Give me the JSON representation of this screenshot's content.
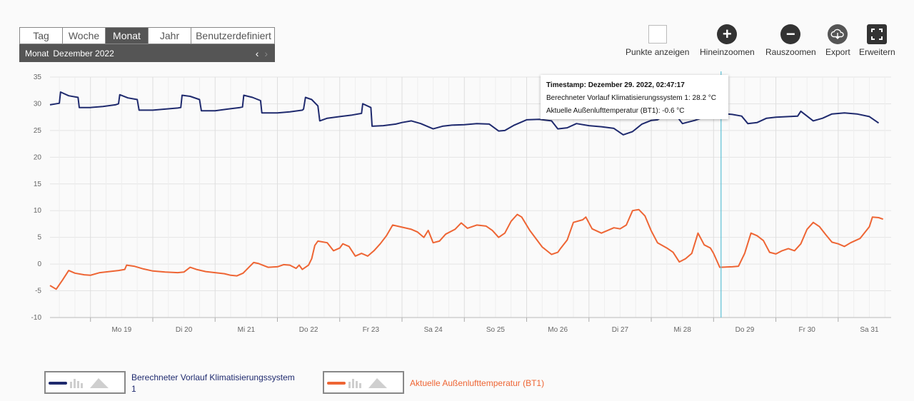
{
  "period_tabs": [
    {
      "label": "Tag",
      "active": false
    },
    {
      "label": "Woche",
      "active": false
    },
    {
      "label": "Monat",
      "active": true
    },
    {
      "label": "Jahr",
      "active": false
    },
    {
      "label": "Benutzerdefiniert",
      "active": false
    }
  ],
  "period_bar": {
    "mode": "Monat",
    "range": "Dezember 2022",
    "prev": "‹",
    "next": "›"
  },
  "toolbar": {
    "points": "Punkte anzeigen",
    "zoom_in": "Hineinzoomen",
    "zoom_out": "Rauszoomen",
    "export": "Export",
    "expand": "Erweitern",
    "zoom_in_glyph": "+",
    "zoom_out_glyph": "−"
  },
  "tooltip": {
    "timestamp": "Timestamp: Dezember 29. 2022, 02:47:17",
    "line1": "Berechneter Vorlauf Klimatisierungssystem 1: 28.2 °C",
    "line2": "Aktuelle Außenlufttemperatur (BT1): -0.6 °C"
  },
  "colors": {
    "series1": "#1f2a6e",
    "series2": "#ee6534",
    "crosshair": "#5bc0d6"
  },
  "legend": [
    {
      "label1": "Berechneter Vorlauf Klimatisierungssystem",
      "label2": "1",
      "color": "#1f2a6e"
    },
    {
      "label1": "Aktuelle Außenlufttemperatur (BT1)",
      "label2": "",
      "color": "#ee6534"
    }
  ],
  "chart_data": {
    "type": "line",
    "x_tick_labels": [
      "Mo 19",
      "Di 20",
      "Mi 21",
      "Do 22",
      "Fr 23",
      "Sa 24",
      "So 25",
      "Mo 26",
      "Di 27",
      "Mi 28",
      "Do 29",
      "Fr 30",
      "Sa 31"
    ],
    "x_range_days": [
      18.35,
      31.85
    ],
    "ylim": [
      -10,
      35
    ],
    "y_ticks": [
      -10,
      -5,
      0,
      5,
      10,
      15,
      20,
      25,
      30,
      35
    ],
    "grid": true,
    "crosshair_x": 29.12,
    "series": [
      {
        "name": "Berechneter Vorlauf Klimatisierungssystem 1",
        "color": "#1f2a6e",
        "points": [
          [
            18.35,
            29.8
          ],
          [
            18.5,
            30.1
          ],
          [
            18.52,
            32.2
          ],
          [
            18.65,
            31.5
          ],
          [
            18.8,
            31.2
          ],
          [
            18.82,
            29.3
          ],
          [
            19.0,
            29.3
          ],
          [
            19.2,
            29.5
          ],
          [
            19.4,
            29.8
          ],
          [
            19.45,
            30.0
          ],
          [
            19.47,
            31.7
          ],
          [
            19.6,
            31.1
          ],
          [
            19.75,
            30.8
          ],
          [
            19.78,
            28.8
          ],
          [
            20.0,
            28.8
          ],
          [
            20.2,
            29.0
          ],
          [
            20.4,
            29.2
          ],
          [
            20.45,
            29.3
          ],
          [
            20.47,
            31.6
          ],
          [
            20.6,
            31.4
          ],
          [
            20.75,
            30.8
          ],
          [
            20.78,
            28.7
          ],
          [
            21.0,
            28.7
          ],
          [
            21.2,
            29.0
          ],
          [
            21.4,
            29.3
          ],
          [
            21.44,
            29.4
          ],
          [
            21.46,
            31.6
          ],
          [
            21.6,
            31.2
          ],
          [
            21.73,
            30.6
          ],
          [
            21.75,
            28.3
          ],
          [
            22.0,
            28.3
          ],
          [
            22.2,
            28.5
          ],
          [
            22.4,
            28.8
          ],
          [
            22.42,
            29.0
          ],
          [
            22.45,
            31.2
          ],
          [
            22.55,
            30.8
          ],
          [
            22.65,
            29.6
          ],
          [
            22.68,
            26.8
          ],
          [
            22.8,
            27.3
          ],
          [
            23.0,
            27.6
          ],
          [
            23.2,
            27.9
          ],
          [
            23.35,
            28.2
          ],
          [
            23.37,
            30.0
          ],
          [
            23.5,
            29.3
          ],
          [
            23.52,
            25.8
          ],
          [
            23.7,
            25.9
          ],
          [
            23.9,
            26.2
          ],
          [
            24.0,
            26.5
          ],
          [
            24.15,
            26.8
          ],
          [
            24.3,
            26.3
          ],
          [
            24.5,
            25.3
          ],
          [
            24.65,
            25.8
          ],
          [
            24.8,
            26.0
          ],
          [
            25.0,
            26.1
          ],
          [
            25.2,
            26.3
          ],
          [
            25.4,
            26.2
          ],
          [
            25.55,
            24.9
          ],
          [
            25.65,
            25.0
          ],
          [
            25.8,
            26.0
          ],
          [
            26.0,
            27.0
          ],
          [
            26.2,
            27.1
          ],
          [
            26.4,
            26.8
          ],
          [
            26.5,
            25.3
          ],
          [
            26.65,
            25.5
          ],
          [
            26.8,
            26.3
          ],
          [
            27.0,
            25.9
          ],
          [
            27.2,
            25.7
          ],
          [
            27.4,
            25.4
          ],
          [
            27.55,
            24.2
          ],
          [
            27.7,
            24.8
          ],
          [
            27.85,
            26.2
          ],
          [
            28.0,
            26.9
          ],
          [
            28.1,
            27.0
          ],
          [
            28.25,
            28.1
          ],
          [
            28.4,
            27.8
          ],
          [
            28.5,
            26.3
          ],
          [
            28.7,
            26.9
          ],
          [
            28.85,
            27.5
          ],
          [
            29.0,
            28.2
          ],
          [
            29.12,
            28.2
          ],
          [
            29.3,
            28.0
          ],
          [
            29.45,
            27.7
          ],
          [
            29.55,
            26.3
          ],
          [
            29.7,
            26.5
          ],
          [
            29.85,
            27.3
          ],
          [
            30.0,
            27.5
          ],
          [
            30.2,
            27.6
          ],
          [
            30.35,
            27.7
          ],
          [
            30.4,
            28.6
          ],
          [
            30.5,
            27.7
          ],
          [
            30.6,
            26.8
          ],
          [
            30.75,
            27.3
          ],
          [
            30.9,
            28.1
          ],
          [
            31.1,
            28.3
          ],
          [
            31.3,
            28.1
          ],
          [
            31.5,
            27.6
          ],
          [
            31.65,
            26.4
          ]
        ]
      },
      {
        "name": "Aktuelle Außenlufttemperatur (BT1)",
        "color": "#ee6534",
        "points": [
          [
            18.35,
            -4.0
          ],
          [
            18.45,
            -4.7
          ],
          [
            18.55,
            -3.0
          ],
          [
            18.65,
            -1.2
          ],
          [
            18.75,
            -1.7
          ],
          [
            18.9,
            -2.0
          ],
          [
            19.0,
            -2.1
          ],
          [
            19.15,
            -1.6
          ],
          [
            19.3,
            -1.4
          ],
          [
            19.45,
            -1.2
          ],
          [
            19.55,
            -1.0
          ],
          [
            19.58,
            -0.2
          ],
          [
            19.7,
            -0.4
          ],
          [
            19.85,
            -0.9
          ],
          [
            20.0,
            -1.3
          ],
          [
            20.2,
            -1.5
          ],
          [
            20.4,
            -1.6
          ],
          [
            20.5,
            -1.5
          ],
          [
            20.6,
            -0.6
          ],
          [
            20.7,
            -1.0
          ],
          [
            20.85,
            -1.4
          ],
          [
            21.0,
            -1.6
          ],
          [
            21.15,
            -1.8
          ],
          [
            21.25,
            -2.1
          ],
          [
            21.35,
            -2.2
          ],
          [
            21.45,
            -1.7
          ],
          [
            21.55,
            -0.5
          ],
          [
            21.62,
            0.3
          ],
          [
            21.7,
            0.1
          ],
          [
            21.85,
            -0.6
          ],
          [
            22.0,
            -0.5
          ],
          [
            22.1,
            -0.1
          ],
          [
            22.2,
            -0.2
          ],
          [
            22.3,
            -0.8
          ],
          [
            22.35,
            -0.2
          ],
          [
            22.4,
            -1.0
          ],
          [
            22.5,
            -0.2
          ],
          [
            22.55,
            1.0
          ],
          [
            22.6,
            3.5
          ],
          [
            22.65,
            4.3
          ],
          [
            22.8,
            4.0
          ],
          [
            22.9,
            2.5
          ],
          [
            23.0,
            3.0
          ],
          [
            23.05,
            3.8
          ],
          [
            23.15,
            3.3
          ],
          [
            23.25,
            1.5
          ],
          [
            23.35,
            2.0
          ],
          [
            23.45,
            1.5
          ],
          [
            23.55,
            2.5
          ],
          [
            23.65,
            3.8
          ],
          [
            23.75,
            5.3
          ],
          [
            23.85,
            7.3
          ],
          [
            24.0,
            6.9
          ],
          [
            24.15,
            6.5
          ],
          [
            24.25,
            6.0
          ],
          [
            24.35,
            5.0
          ],
          [
            24.42,
            6.3
          ],
          [
            24.5,
            4.0
          ],
          [
            24.6,
            4.3
          ],
          [
            24.7,
            5.6
          ],
          [
            24.85,
            6.5
          ],
          [
            24.95,
            7.7
          ],
          [
            25.05,
            6.7
          ],
          [
            25.2,
            7.3
          ],
          [
            25.35,
            7.1
          ],
          [
            25.45,
            6.3
          ],
          [
            25.55,
            5.0
          ],
          [
            25.65,
            5.8
          ],
          [
            25.75,
            8.0
          ],
          [
            25.85,
            9.3
          ],
          [
            25.92,
            8.8
          ],
          [
            26.05,
            6.3
          ],
          [
            26.25,
            3.2
          ],
          [
            26.4,
            1.8
          ],
          [
            26.5,
            2.2
          ],
          [
            26.55,
            3.0
          ],
          [
            26.65,
            4.5
          ],
          [
            26.75,
            7.8
          ],
          [
            26.9,
            8.3
          ],
          [
            26.95,
            8.8
          ],
          [
            27.05,
            6.6
          ],
          [
            27.2,
            5.8
          ],
          [
            27.3,
            6.3
          ],
          [
            27.4,
            6.8
          ],
          [
            27.5,
            6.6
          ],
          [
            27.6,
            7.3
          ],
          [
            27.7,
            10.0
          ],
          [
            27.8,
            10.2
          ],
          [
            27.9,
            9.0
          ],
          [
            28.0,
            6.2
          ],
          [
            28.1,
            4.0
          ],
          [
            28.25,
            3.0
          ],
          [
            28.35,
            2.2
          ],
          [
            28.45,
            0.4
          ],
          [
            28.55,
            1.0
          ],
          [
            28.65,
            2.0
          ],
          [
            28.75,
            5.8
          ],
          [
            28.85,
            3.6
          ],
          [
            28.95,
            3.0
          ],
          [
            29.0,
            2.0
          ],
          [
            29.1,
            -0.6
          ],
          [
            29.3,
            -0.5
          ],
          [
            29.4,
            -0.4
          ],
          [
            29.5,
            2.0
          ],
          [
            29.6,
            5.8
          ],
          [
            29.7,
            5.3
          ],
          [
            29.8,
            4.4
          ],
          [
            29.9,
            2.2
          ],
          [
            30.0,
            1.9
          ],
          [
            30.1,
            2.5
          ],
          [
            30.2,
            2.9
          ],
          [
            30.3,
            2.5
          ],
          [
            30.4,
            3.8
          ],
          [
            30.5,
            6.5
          ],
          [
            30.6,
            7.8
          ],
          [
            30.7,
            7.0
          ],
          [
            30.8,
            5.5
          ],
          [
            30.9,
            4.1
          ],
          [
            31.0,
            3.8
          ],
          [
            31.1,
            3.3
          ],
          [
            31.2,
            4.0
          ],
          [
            31.35,
            4.8
          ],
          [
            31.5,
            7.0
          ],
          [
            31.55,
            8.8
          ],
          [
            31.65,
            8.7
          ],
          [
            31.72,
            8.4
          ]
        ]
      }
    ]
  }
}
